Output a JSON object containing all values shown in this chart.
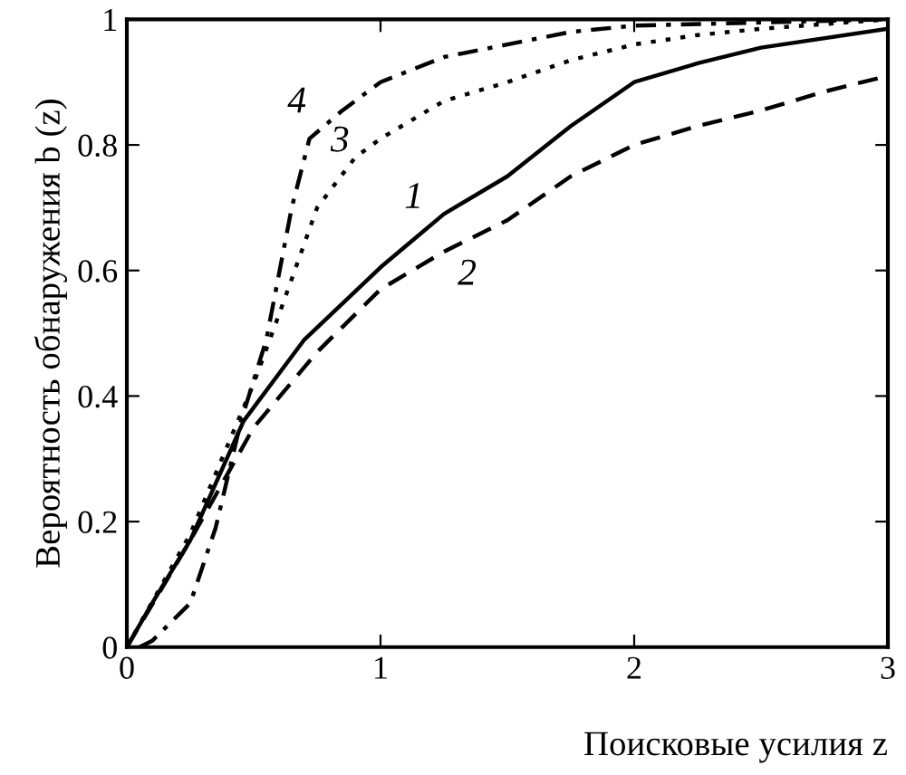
{
  "chart_data": {
    "type": "line",
    "xlabel": "Поисковые усилия z",
    "ylabel": "Вероятность обнаружения b (z)",
    "xlim": [
      0,
      3
    ],
    "ylim": [
      0,
      1
    ],
    "xticks": [
      0,
      1,
      2,
      3
    ],
    "yticks": [
      0,
      0.2,
      0.4,
      0.6,
      0.8,
      1
    ],
    "grid": false,
    "legend": false,
    "series": [
      {
        "color": "#000000",
        "line_style": "solid",
        "x": [
          0,
          0.1,
          0.25,
          0.46,
          0.7,
          1,
          1.25,
          1.5,
          1.75,
          2,
          2.25,
          2.5,
          3
        ],
        "values": [
          0,
          0.07,
          0.17,
          0.36,
          0.49,
          0.605,
          0.69,
          0.75,
          0.83,
          0.9,
          0.93,
          0.955,
          0.985
        ]
      },
      {
        "color": "#000000",
        "line_style": "dashed",
        "x": [
          0,
          0.25,
          0.5,
          0.75,
          1,
          1.25,
          1.5,
          1.75,
          2,
          2.25,
          2.5,
          2.75,
          3
        ],
        "values": [
          0,
          0.17,
          0.35,
          0.47,
          0.57,
          0.63,
          0.68,
          0.75,
          0.8,
          0.83,
          0.855,
          0.885,
          0.91
        ]
      },
      {
        "color": "#000000",
        "line_style": "dotted",
        "x": [
          0,
          0.25,
          0.5,
          0.6,
          0.75,
          0.9,
          1,
          1.25,
          1.5,
          1.75,
          2,
          2.25,
          2.5,
          3
        ],
        "values": [
          0,
          0.18,
          0.42,
          0.53,
          0.7,
          0.78,
          0.81,
          0.87,
          0.9,
          0.935,
          0.96,
          0.975,
          0.985,
          1
        ]
      },
      {
        "color": "#000000",
        "line_style": "dashdot",
        "x": [
          0.05,
          0.1,
          0.25,
          0.35,
          0.45,
          0.55,
          0.65,
          0.72,
          0.85,
          1,
          1.25,
          1.5,
          1.75,
          2,
          2.5,
          3
        ],
        "values": [
          0,
          0.01,
          0.07,
          0.19,
          0.36,
          0.49,
          0.7,
          0.81,
          0.855,
          0.9,
          0.94,
          0.96,
          0.98,
          0.99,
          0.995,
          1
        ]
      }
    ],
    "annotations": [
      {
        "text": "4",
        "x": 0.72,
        "y": 0.81
      },
      {
        "text": "3",
        "x": 0.9,
        "y": 0.78
      },
      {
        "text": "1",
        "x": 1.25,
        "y": 0.69
      },
      {
        "text": "2",
        "x": 1.5,
        "y": 0.68
      }
    ]
  }
}
